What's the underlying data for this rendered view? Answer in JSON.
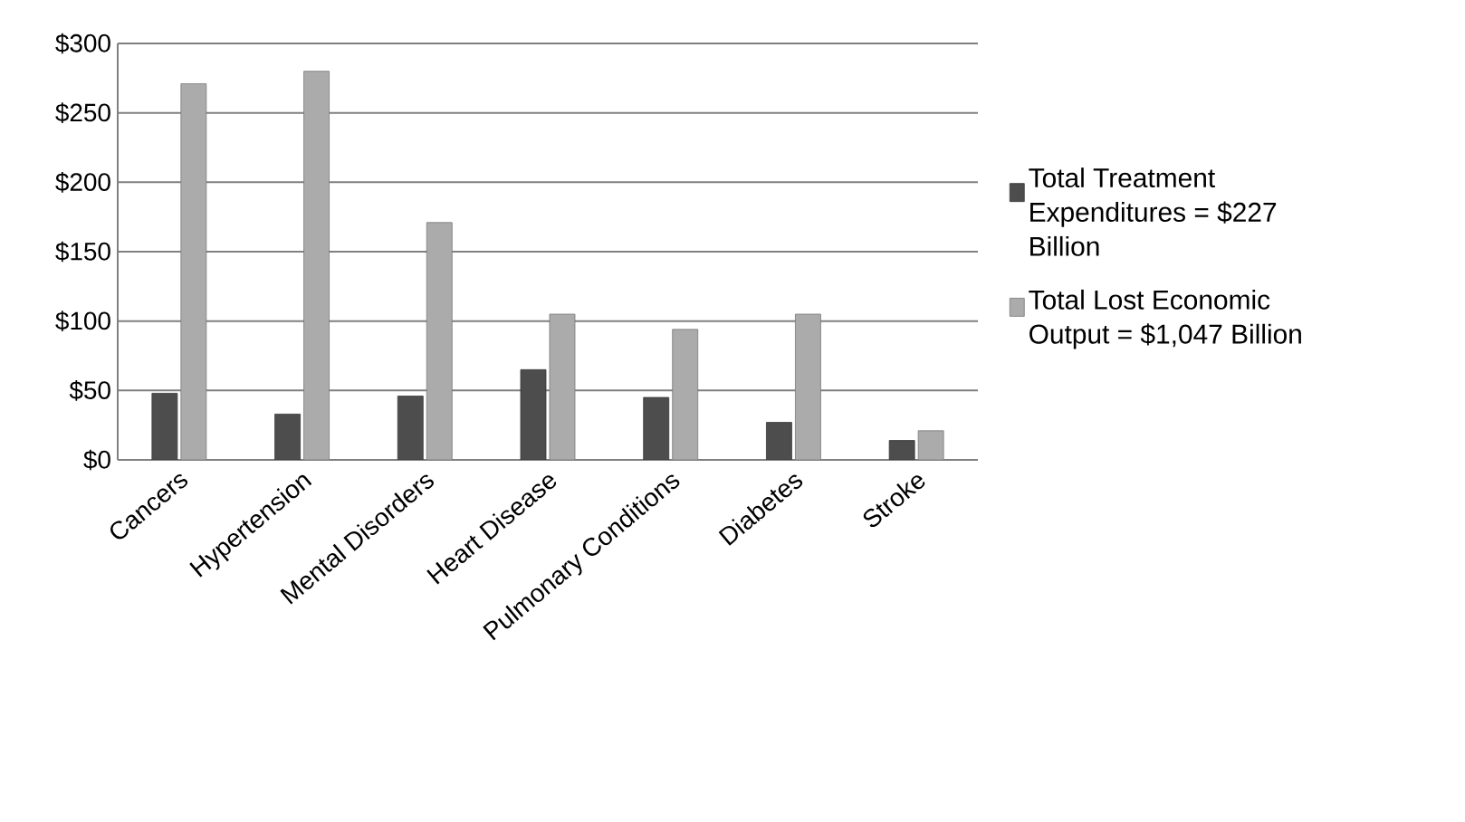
{
  "chart_data": {
    "type": "bar",
    "categories": [
      "Cancers",
      "Hypertension",
      "Mental Disorders",
      "Heart Disease",
      "Pulmonary Conditions",
      "Diabetes",
      "Stroke"
    ],
    "series": [
      {
        "name": "Total Treatment Expenditures = $227 Billion",
        "color": "#4d4d4d",
        "values": [
          48,
          33,
          46,
          65,
          45,
          27,
          14
        ]
      },
      {
        "name": "Total Lost Economic Output = $1,047 Billion",
        "color": "#ababab",
        "values": [
          271,
          280,
          171,
          105,
          94,
          105,
          21
        ]
      }
    ],
    "ylim": [
      0,
      300
    ],
    "yticks": [
      {
        "value": 0,
        "label": "$0"
      },
      {
        "value": 50,
        "label": "$50"
      },
      {
        "value": 100,
        "label": "$100"
      },
      {
        "value": 150,
        "label": "$150"
      },
      {
        "value": 200,
        "label": "$200"
      },
      {
        "value": 250,
        "label": "$250"
      },
      {
        "value": 300,
        "label": "$300"
      }
    ],
    "grid": "y",
    "legend": "right"
  }
}
